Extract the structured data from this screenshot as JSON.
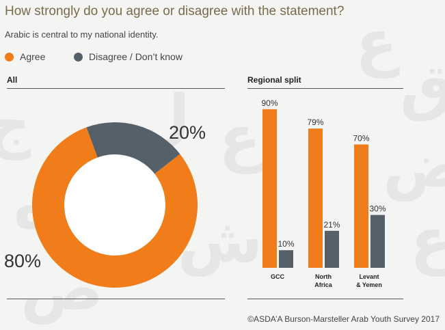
{
  "title": "How strongly do you agree or disagree with the statement?",
  "subtitle": "Arabic is central to my national identity.",
  "legend": [
    {
      "label": "Agree",
      "color": "#f07c1a"
    },
    {
      "label": "Disagree / Don’t know",
      "color": "#566069"
    }
  ],
  "sections": {
    "all": "All",
    "regional": "Regional split"
  },
  "footer": "©ASDA’A Burson-Marsteller Arab Youth Survey 2017",
  "chart_data": [
    {
      "type": "pie",
      "title": "All",
      "donut": true,
      "categories": [
        "Agree",
        "Disagree / Don’t know"
      ],
      "values": [
        80,
        20
      ],
      "labels": [
        "80%",
        "20%"
      ],
      "colors": [
        "#f07c1a",
        "#566069"
      ]
    },
    {
      "type": "bar",
      "title": "Regional split",
      "categories": [
        "GCC",
        "North Africa",
        "Levant & Yemen"
      ],
      "category_lines": [
        [
          "GCC"
        ],
        [
          "North",
          "Africa"
        ],
        [
          "Levant",
          "& Yemen"
        ]
      ],
      "series": [
        {
          "name": "Agree",
          "values": [
            90,
            79,
            70
          ],
          "labels": [
            "90%",
            "79%",
            "70%"
          ],
          "color": "#f07c1a"
        },
        {
          "name": "Disagree / Don’t know",
          "values": [
            10,
            21,
            30
          ],
          "labels": [
            "10%",
            "21%",
            "30%"
          ],
          "color": "#566069"
        }
      ],
      "ylim": [
        0,
        100
      ]
    }
  ]
}
